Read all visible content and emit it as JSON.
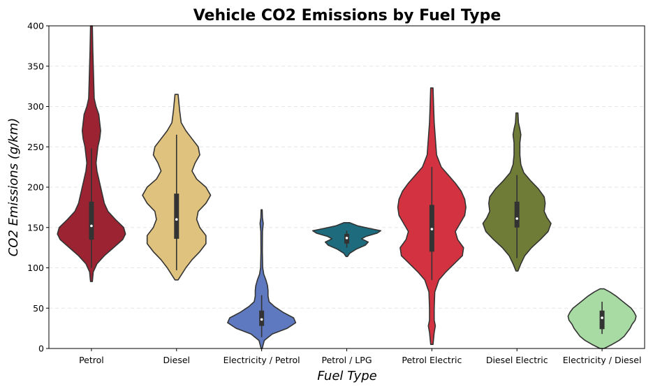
{
  "chart_data": {
    "type": "violin",
    "title": "Vehicle CO2 Emissions by Fuel Type",
    "xlabel": "Fuel Type",
    "ylabel": "CO2 Emissions (g/km)",
    "ylim": [
      0,
      400
    ],
    "yticks": [
      0,
      50,
      100,
      150,
      200,
      250,
      300,
      350,
      400
    ],
    "grid": "y-dashed",
    "categories": [
      "Petrol",
      "Diesel",
      "Electricity / Petrol",
      "Petrol / LPG",
      "Petrol Electric",
      "Diesel Electric",
      "Electricity / Diesel"
    ],
    "series": [
      {
        "category": "Petrol",
        "color": "#9b2332",
        "min": 83,
        "max": 400,
        "whisker_low": 100,
        "q1": 135,
        "median": 152,
        "q3": 182,
        "whisker_high": 248,
        "density": [
          [
            83,
            1
          ],
          [
            95,
            2
          ],
          [
            105,
            6
          ],
          [
            115,
            14
          ],
          [
            125,
            24
          ],
          [
            135,
            34
          ],
          [
            142,
            37
          ],
          [
            150,
            35
          ],
          [
            160,
            26
          ],
          [
            170,
            18
          ],
          [
            180,
            14
          ],
          [
            190,
            12
          ],
          [
            200,
            10
          ],
          [
            210,
            8
          ],
          [
            220,
            6
          ],
          [
            230,
            5
          ],
          [
            240,
            6
          ],
          [
            250,
            7
          ],
          [
            260,
            9
          ],
          [
            270,
            10
          ],
          [
            280,
            9
          ],
          [
            290,
            8
          ],
          [
            300,
            5
          ],
          [
            310,
            3
          ],
          [
            330,
            2.5
          ],
          [
            350,
            2
          ],
          [
            370,
            1.5
          ],
          [
            400,
            1
          ]
        ]
      },
      {
        "category": "Diesel",
        "color": "#dfc27d",
        "min": 85,
        "max": 315,
        "whisker_low": 97,
        "q1": 136,
        "median": 160,
        "q3": 192,
        "whisker_high": 265,
        "density": [
          [
            85,
            1
          ],
          [
            100,
            6
          ],
          [
            110,
            10
          ],
          [
            120,
            15
          ],
          [
            130,
            19
          ],
          [
            140,
            19
          ],
          [
            150,
            15
          ],
          [
            160,
            13
          ],
          [
            170,
            14
          ],
          [
            180,
            19
          ],
          [
            190,
            22
          ],
          [
            200,
            19
          ],
          [
            210,
            13
          ],
          [
            220,
            10
          ],
          [
            230,
            12
          ],
          [
            240,
            15
          ],
          [
            250,
            14
          ],
          [
            260,
            10
          ],
          [
            270,
            6
          ],
          [
            280,
            3
          ],
          [
            295,
            2
          ],
          [
            315,
            1
          ]
        ]
      },
      {
        "category": "Electricity / Petrol",
        "color": "#5f79c0",
        "min": 0,
        "max": 172,
        "whisker_low": 14,
        "q1": 28,
        "median": 36,
        "q3": 47,
        "whisker_high": 66,
        "density": [
          [
            0,
            1
          ],
          [
            10,
            5
          ],
          [
            18,
            20
          ],
          [
            25,
            48
          ],
          [
            32,
            64
          ],
          [
            38,
            60
          ],
          [
            45,
            40
          ],
          [
            52,
            24
          ],
          [
            58,
            14
          ],
          [
            65,
            12
          ],
          [
            72,
            12
          ],
          [
            78,
            11
          ],
          [
            85,
            8
          ],
          [
            92,
            4
          ],
          [
            100,
            2
          ],
          [
            120,
            1.3
          ],
          [
            145,
            1.5
          ],
          [
            155,
            3
          ],
          [
            162,
            1.5
          ],
          [
            172,
            1
          ]
        ]
      },
      {
        "category": "Petrol / LPG",
        "color": "#1d6b7d",
        "min": 114,
        "max": 156,
        "whisker_low": 125,
        "q1": 130,
        "median": 137,
        "q3": 142,
        "whisker_high": 146,
        "density": [
          [
            114,
            2
          ],
          [
            118,
            8
          ],
          [
            123,
            25
          ],
          [
            128,
            50
          ],
          [
            132,
            58
          ],
          [
            136,
            40
          ],
          [
            139,
            52
          ],
          [
            143,
            82
          ],
          [
            146,
            92
          ],
          [
            149,
            60
          ],
          [
            152,
            30
          ],
          [
            156,
            8
          ]
        ]
      },
      {
        "category": "Petrol Electric",
        "color": "#d33340",
        "min": 5,
        "max": 323,
        "whisker_low": 85,
        "q1": 120,
        "median": 148,
        "q3": 178,
        "whisker_high": 225,
        "density": [
          [
            5,
            1
          ],
          [
            20,
            2
          ],
          [
            28,
            3
          ],
          [
            35,
            2
          ],
          [
            50,
            2
          ],
          [
            70,
            2.5
          ],
          [
            85,
            6
          ],
          [
            95,
            12
          ],
          [
            105,
            19
          ],
          [
            115,
            26
          ],
          [
            125,
            27
          ],
          [
            135,
            22
          ],
          [
            145,
            20
          ],
          [
            155,
            24
          ],
          [
            165,
            28
          ],
          [
            175,
            29
          ],
          [
            185,
            28
          ],
          [
            195,
            25
          ],
          [
            205,
            20
          ],
          [
            215,
            14
          ],
          [
            225,
            8
          ],
          [
            240,
            4
          ],
          [
            260,
            3
          ],
          [
            280,
            2
          ],
          [
            300,
            1.5
          ],
          [
            323,
            1
          ]
        ]
      },
      {
        "category": "Diesel Electric",
        "color": "#6e7c37",
        "min": 96,
        "max": 292,
        "whisker_low": 112,
        "q1": 150,
        "median": 161,
        "q3": 182,
        "whisker_high": 215,
        "density": [
          [
            96,
            1
          ],
          [
            105,
            4
          ],
          [
            115,
            8
          ],
          [
            125,
            15
          ],
          [
            135,
            24
          ],
          [
            145,
            32
          ],
          [
            155,
            35
          ],
          [
            162,
            31
          ],
          [
            170,
            28
          ],
          [
            180,
            29
          ],
          [
            188,
            28
          ],
          [
            198,
            22
          ],
          [
            208,
            14
          ],
          [
            218,
            7
          ],
          [
            228,
            4
          ],
          [
            240,
            3
          ],
          [
            255,
            3
          ],
          [
            265,
            4
          ],
          [
            272,
            3
          ],
          [
            280,
            1.5
          ],
          [
            292,
            1
          ]
        ]
      },
      {
        "category": "Electricity / Diesel",
        "color": "#a8dba3",
        "min": 0,
        "max": 74,
        "whisker_low": 18,
        "q1": 24,
        "median": 38,
        "q3": 47,
        "whisker_high": 58,
        "density": [
          [
            0,
            2
          ],
          [
            5,
            10
          ],
          [
            10,
            17
          ],
          [
            15,
            22
          ],
          [
            20,
            25
          ],
          [
            25,
            28
          ],
          [
            30,
            30
          ],
          [
            35,
            33
          ],
          [
            40,
            34
          ],
          [
            45,
            32
          ],
          [
            50,
            29
          ],
          [
            55,
            24
          ],
          [
            60,
            19
          ],
          [
            65,
            14
          ],
          [
            70,
            8
          ],
          [
            74,
            2
          ]
        ]
      }
    ]
  }
}
